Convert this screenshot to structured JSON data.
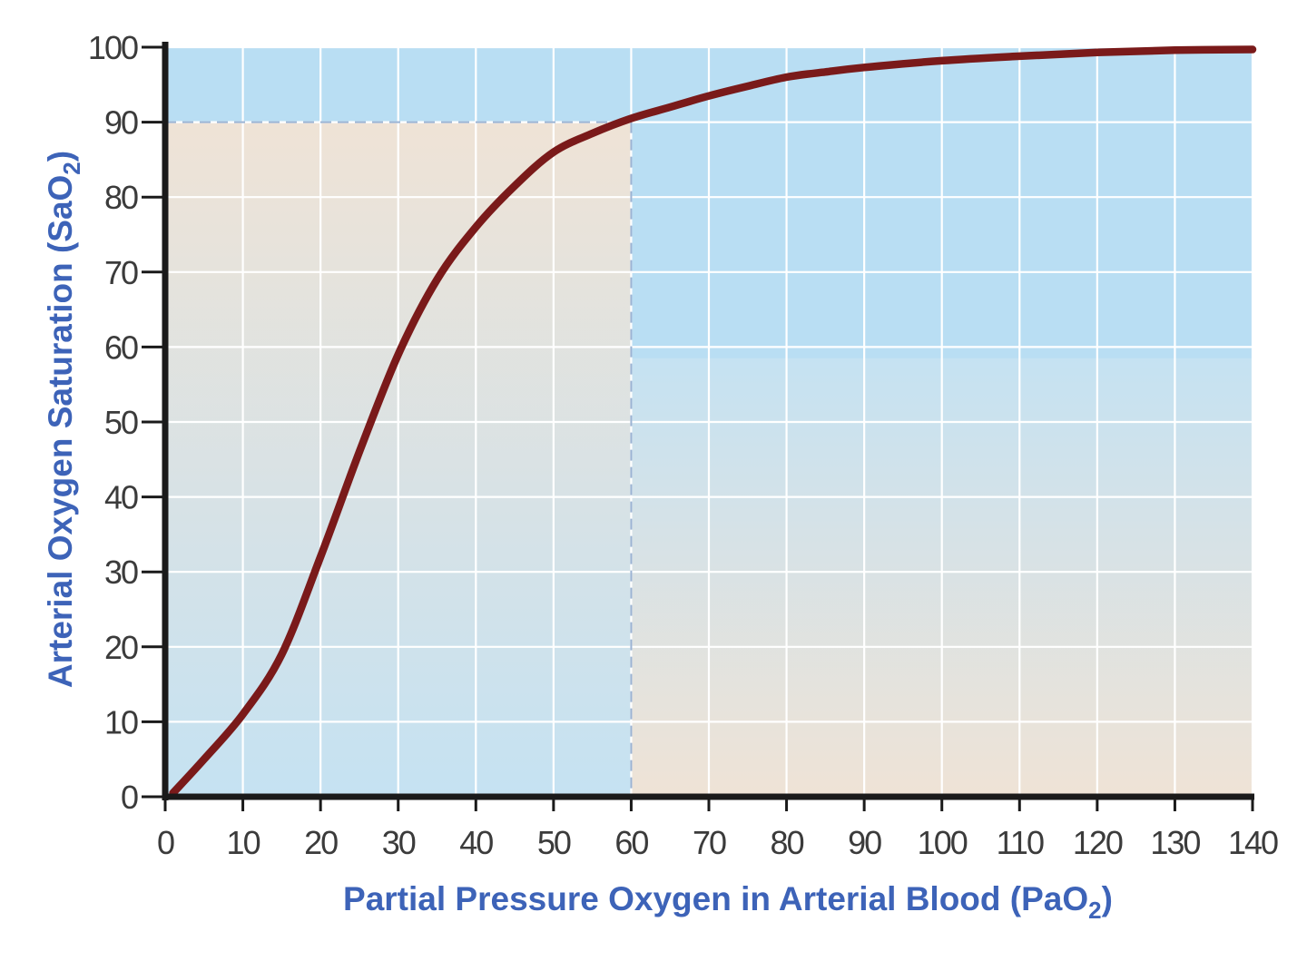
{
  "chart_data": {
    "type": "line",
    "title": "",
    "xlabel": {
      "prefix": "Partial Pressure Oxygen in Arterial Blood (PaO",
      "subscript": "2",
      "suffix": ")"
    },
    "ylabel": {
      "prefix": "Arterial Oxygen Saturation (SaO",
      "subscript": "2",
      "suffix": ")"
    },
    "xlim": [
      0,
      140
    ],
    "ylim": [
      0,
      100
    ],
    "xticks": [
      0,
      10,
      20,
      30,
      40,
      50,
      60,
      70,
      80,
      90,
      100,
      110,
      120,
      130,
      140
    ],
    "yticks": [
      0,
      10,
      20,
      30,
      40,
      50,
      60,
      70,
      80,
      90,
      100
    ],
    "xtick_labels": [
      "0",
      "10",
      "20",
      "30",
      "40",
      "50",
      "60",
      "70",
      "80",
      "90",
      "100",
      "110",
      "120",
      "130",
      "140"
    ],
    "ytick_labels": [
      "0",
      "10",
      "20",
      "30",
      "40",
      "50",
      "60",
      "70",
      "80",
      "90",
      "100"
    ],
    "grid": true,
    "series": [
      {
        "x": [
          1,
          5,
          10,
          15,
          20,
          25,
          30,
          35,
          40,
          45,
          50,
          55,
          60,
          65,
          70,
          75,
          80,
          85,
          90,
          100,
          110,
          120,
          130,
          140
        ],
        "y": [
          0.5,
          5,
          11,
          19,
          32,
          46,
          59,
          69,
          76,
          81.5,
          86,
          88.5,
          90.5,
          92,
          93.5,
          94.8,
          96,
          96.7,
          97.3,
          98.2,
          98.8,
          99.3,
          99.6,
          99.7
        ],
        "color": "#7a1a1a"
      }
    ],
    "reference_point": {
      "x": 60,
      "y": 90
    },
    "colors": {
      "plot_background": "#b9def3",
      "shaded_region": "#ede3d7",
      "grid": "#ffffff",
      "axis": "#1a1a1a",
      "reference_line": "#9bb3d3",
      "axis_title": "#3d63b8",
      "tick_label": "#3b3b3b"
    }
  }
}
